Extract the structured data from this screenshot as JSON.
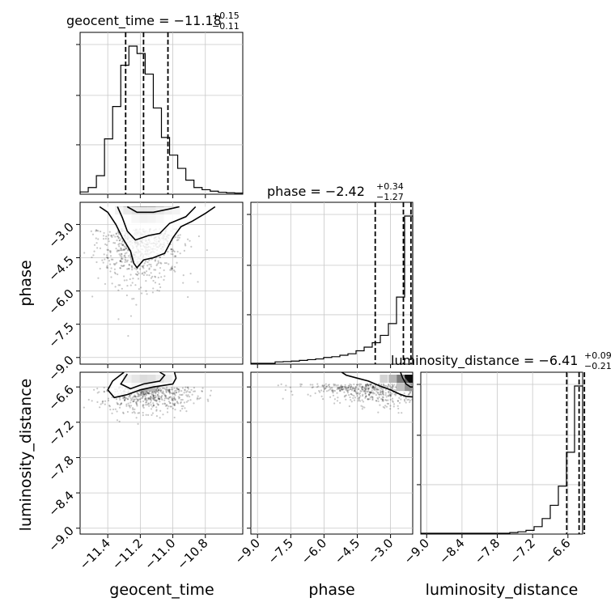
{
  "chart_data": {
    "type": "corner",
    "parameters": [
      "geocent_time",
      "phase",
      "luminosity_distance"
    ],
    "axes": {
      "geocent_time": {
        "range": [
          -11.57,
          -10.57
        ],
        "ticks": [
          -11.4,
          -11.2,
          -11.0,
          -10.8
        ],
        "tick_labels": [
          "−11.4",
          "−11.2",
          "−11.0",
          "−10.8"
        ]
      },
      "phase": {
        "range": [
          -9.3,
          -2.0
        ],
        "ticks": [
          -9.0,
          -7.5,
          -6.0,
          -4.5,
          -3.0
        ],
        "tick_labels": [
          "−9.0",
          "−7.5",
          "−6.0",
          "−4.5",
          "−3.0"
        ]
      },
      "luminosity_distance": {
        "range": [
          -9.1,
          -6.35
        ],
        "ticks": [
          -9.0,
          -8.4,
          -7.8,
          -7.2,
          -6.6
        ],
        "tick_labels": [
          "−9.0",
          "−8.4",
          "−7.8",
          "−7.2",
          "−6.6"
        ]
      }
    },
    "titles": [
      {
        "param": "geocent_time",
        "label": "geocent_time = −11.18",
        "plus": "+0.15",
        "minus": "−0.11"
      },
      {
        "param": "phase",
        "label": "phase = −2.42",
        "plus": "+0.34",
        "minus": "−1.27"
      },
      {
        "param": "luminosity_distance",
        "label": "luminosity_distance = −6.41",
        "plus": "+0.09",
        "minus": "−0.21"
      }
    ],
    "quantiles": {
      "geocent_time": [
        -11.29,
        -11.18,
        -11.03
      ],
      "phase": [
        -3.69,
        -2.42,
        -2.08
      ],
      "luminosity_distance": [
        -6.62,
        -6.41,
        -6.32
      ]
    },
    "histograms": {
      "geocent_time": {
        "edges_range": [
          -11.57,
          -10.57
        ],
        "bins": 20,
        "counts": [
          0.01,
          0.04,
          0.12,
          0.37,
          0.59,
          0.87,
          1.0,
          0.95,
          0.81,
          0.58,
          0.38,
          0.26,
          0.17,
          0.09,
          0.04,
          0.025,
          0.015,
          0.008,
          0.004,
          0.002
        ]
      },
      "phase": {
        "edges_range": [
          -9.3,
          -2.0
        ],
        "bins": 20,
        "counts": [
          0.0,
          0.0,
          0.0,
          0.01,
          0.012,
          0.015,
          0.02,
          0.025,
          0.03,
          0.04,
          0.045,
          0.055,
          0.065,
          0.085,
          0.11,
          0.14,
          0.19,
          0.27,
          0.45,
          1.0
        ]
      },
      "luminosity_distance": {
        "edges_range": [
          -9.1,
          -6.35
        ],
        "bins": 20,
        "counts": [
          0.0,
          0.0,
          0.0,
          0.0,
          0.0,
          0.0,
          0.0,
          0.0,
          0.0,
          0.0,
          0.0,
          0.005,
          0.01,
          0.02,
          0.045,
          0.1,
          0.19,
          0.32,
          0.55,
          1.0
        ]
      }
    },
    "hist2d": [
      {
        "x": "geocent_time",
        "y": "phase",
        "cells": [
          {
            "x": -11.18,
            "y": -2.37,
            "w": 1.0
          },
          {
            "x": -11.13,
            "y": -2.37,
            "w": 0.98
          },
          {
            "x": -11.23,
            "y": -2.37,
            "w": 0.85
          },
          {
            "x": -11.08,
            "y": -2.37,
            "w": 0.72
          },
          {
            "x": -11.28,
            "y": -2.37,
            "w": 0.6
          },
          {
            "x": -11.03,
            "y": -2.37,
            "w": 0.45
          },
          {
            "x": -10.98,
            "y": -2.37,
            "w": 0.3
          },
          {
            "x": -11.33,
            "y": -2.37,
            "w": 0.25
          },
          {
            "x": -11.18,
            "y": -2.75,
            "w": 0.35
          },
          {
            "x": -11.13,
            "y": -2.75,
            "w": 0.3
          },
          {
            "x": -11.23,
            "y": -2.75,
            "w": 0.22
          },
          {
            "x": -11.08,
            "y": -2.75,
            "w": 0.18
          }
        ]
      },
      {
        "x": "geocent_time",
        "y": "luminosity_distance",
        "cells": [
          {
            "x": -11.18,
            "y": -6.46,
            "w": 1.0
          },
          {
            "x": -11.13,
            "y": -6.46,
            "w": 0.9
          },
          {
            "x": -11.23,
            "y": -6.46,
            "w": 0.7
          },
          {
            "x": -11.08,
            "y": -6.46,
            "w": 0.55
          },
          {
            "x": -11.28,
            "y": -6.46,
            "w": 0.4
          },
          {
            "x": -11.03,
            "y": -6.46,
            "w": 0.3
          },
          {
            "x": -11.18,
            "y": -6.6,
            "w": 0.35
          },
          {
            "x": -11.13,
            "y": -6.6,
            "w": 0.3
          },
          {
            "x": -11.23,
            "y": -6.6,
            "w": 0.25
          }
        ]
      },
      {
        "x": "phase",
        "y": "luminosity_distance",
        "cells": [
          {
            "x": -2.18,
            "y": -6.46,
            "w": 1.0
          },
          {
            "x": -2.55,
            "y": -6.46,
            "w": 0.55
          },
          {
            "x": -2.18,
            "y": -6.6,
            "w": 0.45
          },
          {
            "x": -2.9,
            "y": -6.46,
            "w": 0.3
          },
          {
            "x": -2.55,
            "y": -6.6,
            "w": 0.25
          },
          {
            "x": -3.3,
            "y": -6.46,
            "w": 0.18
          }
        ]
      }
    ],
    "contours": [
      {
        "x": "geocent_time",
        "y": "phase",
        "level": "outer",
        "points": [
          [
            -11.45,
            -2.2
          ],
          [
            -11.4,
            -2.45
          ],
          [
            -11.35,
            -3.0
          ],
          [
            -11.31,
            -3.6
          ],
          [
            -11.26,
            -4.2
          ],
          [
            -11.24,
            -4.75
          ],
          [
            -11.22,
            -4.95
          ],
          [
            -11.18,
            -4.6
          ],
          [
            -11.12,
            -4.5
          ],
          [
            -11.05,
            -4.3
          ],
          [
            -11.0,
            -3.6
          ],
          [
            -10.95,
            -3.1
          ],
          [
            -10.88,
            -2.85
          ],
          [
            -10.8,
            -2.5
          ],
          [
            -10.74,
            -2.2
          ]
        ]
      },
      {
        "x": "geocent_time",
        "y": "phase",
        "level": "inner",
        "points": [
          [
            -11.34,
            -2.2
          ],
          [
            -11.31,
            -2.7
          ],
          [
            -11.28,
            -3.3
          ],
          [
            -11.23,
            -3.7
          ],
          [
            -11.15,
            -3.5
          ],
          [
            -11.08,
            -3.4
          ],
          [
            -11.02,
            -2.95
          ],
          [
            -10.92,
            -2.65
          ],
          [
            -10.86,
            -2.2
          ]
        ]
      },
      {
        "x": "geocent_time",
        "y": "phase",
        "level": "core",
        "points": [
          [
            -11.28,
            -2.2
          ],
          [
            -11.22,
            -2.45
          ],
          [
            -11.12,
            -2.45
          ],
          [
            -11.02,
            -2.3
          ],
          [
            -10.96,
            -2.2
          ]
        ]
      },
      {
        "x": "geocent_time",
        "y": "luminosity_distance",
        "level": "outer",
        "points": [
          [
            -11.3,
            -6.35
          ],
          [
            -11.37,
            -6.5
          ],
          [
            -11.4,
            -6.65
          ],
          [
            -11.36,
            -6.78
          ],
          [
            -11.28,
            -6.73
          ],
          [
            -11.2,
            -6.65
          ],
          [
            -11.12,
            -6.6
          ],
          [
            -11.0,
            -6.55
          ],
          [
            -10.98,
            -6.45
          ],
          [
            -10.99,
            -6.35
          ]
        ]
      },
      {
        "x": "geocent_time",
        "y": "luminosity_distance",
        "level": "inner",
        "points": [
          [
            -11.28,
            -6.38
          ],
          [
            -11.32,
            -6.55
          ],
          [
            -11.26,
            -6.63
          ],
          [
            -11.18,
            -6.55
          ],
          [
            -11.08,
            -6.5
          ],
          [
            -11.05,
            -6.4
          ],
          [
            -11.08,
            -6.35
          ]
        ]
      },
      {
        "x": "phase",
        "y": "luminosity_distance",
        "level": "outer",
        "points": [
          [
            -5.2,
            -6.35
          ],
          [
            -5.0,
            -6.4
          ],
          [
            -4.5,
            -6.45
          ],
          [
            -4.0,
            -6.5
          ],
          [
            -3.5,
            -6.58
          ],
          [
            -3.0,
            -6.65
          ],
          [
            -2.6,
            -6.72
          ],
          [
            -2.3,
            -6.76
          ],
          [
            -2.0,
            -6.77
          ]
        ]
      },
      {
        "x": "phase",
        "y": "luminosity_distance",
        "level": "inner",
        "points": [
          [
            -2.55,
            -6.35
          ],
          [
            -2.45,
            -6.45
          ],
          [
            -2.3,
            -6.55
          ],
          [
            -2.1,
            -6.6
          ],
          [
            -2.0,
            -6.6
          ]
        ]
      }
    ],
    "scatter_density": [
      {
        "x": "geocent_time",
        "y": "phase",
        "center": [
          -11.2,
          -3.2
        ],
        "spread": [
          0.13,
          1.2
        ],
        "n": 700,
        "clip_y_top": -2.0
      },
      {
        "x": "geocent_time",
        "y": "luminosity_distance",
        "center": [
          -11.15,
          -6.6
        ],
        "spread": [
          0.14,
          0.2
        ],
        "n": 550
      },
      {
        "x": "phase",
        "y": "luminosity_distance",
        "center": [
          -3.6,
          -6.55
        ],
        "spread": [
          1.6,
          0.2
        ],
        "n": 550
      }
    ]
  }
}
